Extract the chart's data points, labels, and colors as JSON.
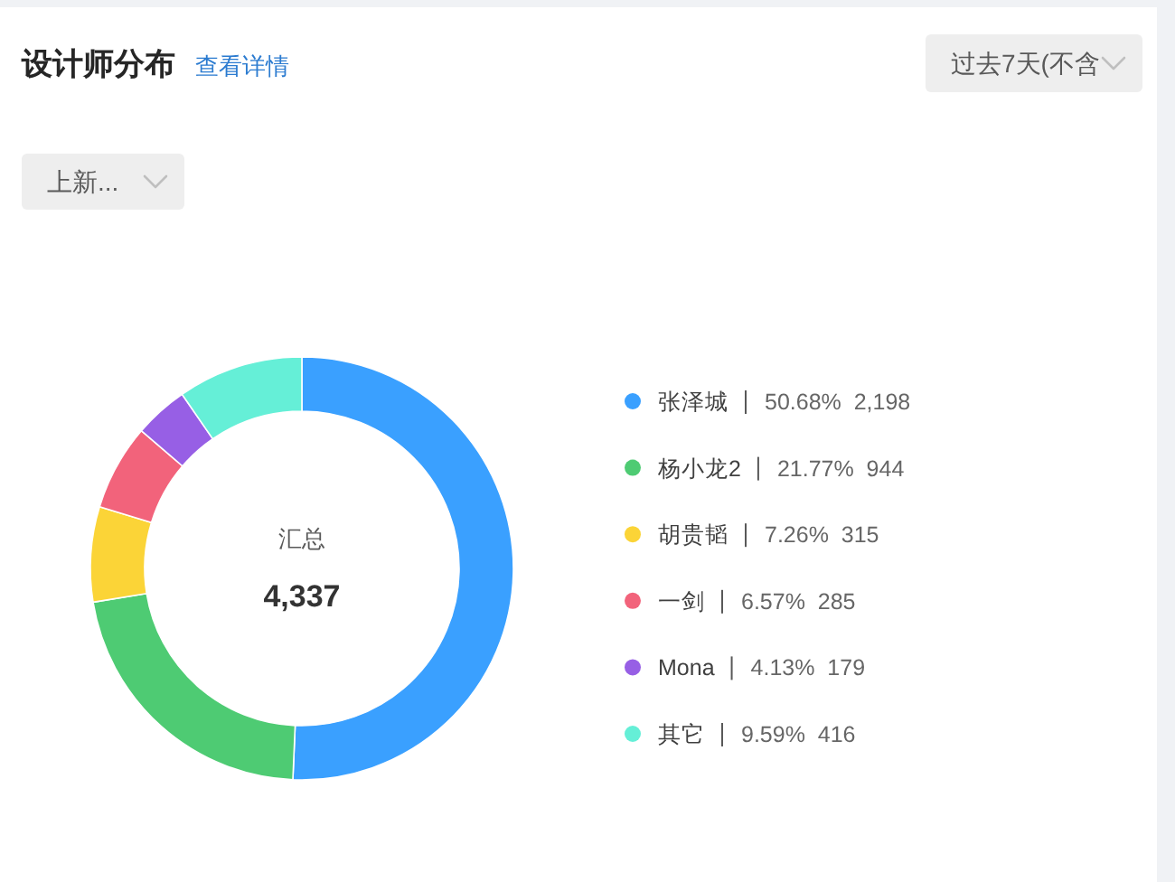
{
  "chart_data": {
    "type": "donut",
    "title": "设计师分布",
    "categories": [
      "张泽城",
      "杨小龙2",
      "胡贵韬",
      "一剑",
      "Mona",
      "其它"
    ],
    "values": [
      2198,
      944,
      315,
      285,
      179,
      416
    ],
    "colors": [
      "#3aa0ff",
      "#4ecb73",
      "#fbd437",
      "#f2637b",
      "#975fe5",
      "#65efd7"
    ],
    "value_labels": [
      "50.68%  2,198",
      "21.77%  944",
      "7.26%  315",
      "6.57%  285",
      "4.13%  179",
      "9.59%  416"
    ],
    "legend": "right",
    "annotations": [
      "查看详情",
      "过去7天(不含",
      "上新...",
      "汇总",
      "4,337"
    ]
  }
}
